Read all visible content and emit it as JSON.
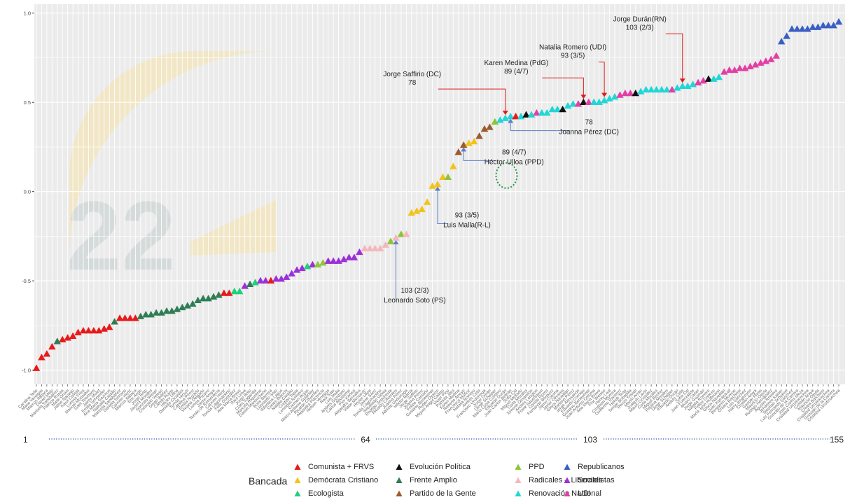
{
  "chart_data": {
    "type": "scatter",
    "title": "",
    "xlabel": "",
    "ylabel": "",
    "ylim": [
      -1.08,
      1.05
    ],
    "y_ticks": [
      -1.0,
      -0.5,
      0.0,
      0.5,
      1.0
    ],
    "y_tick_labels": [
      "-1.0",
      "-0.5",
      "0.0",
      "0.5",
      "1.0"
    ],
    "grid": true,
    "marker": "triangle",
    "legend_position": "bottom",
    "legend_title": "Bancada",
    "parties": [
      {
        "name": "Comunista + FRVS",
        "color": "#e8191a"
      },
      {
        "name": "Demócrata Cristiano",
        "color": "#f2c41a"
      },
      {
        "name": "Ecologista",
        "color": "#1fd17a"
      },
      {
        "name": "Evolución Política",
        "color": "#111111"
      },
      {
        "name": "Frente Amplio",
        "color": "#2e7d55"
      },
      {
        "name": "Partido de la Gente",
        "color": "#9c5a2e"
      },
      {
        "name": "PPD",
        "color": "#8fc43a"
      },
      {
        "name": "Radicales – Liberales",
        "color": "#f4b8bc"
      },
      {
        "name": "Renovación Nacional",
        "color": "#22d6d6"
      },
      {
        "name": "Republicanos",
        "color": "#3a5fc4"
      },
      {
        "name": "Socialistas",
        "color": "#9b30d9"
      },
      {
        "name": "UDI",
        "color": "#e23fa5"
      }
    ],
    "points": [
      [
        1,
        -0.99,
        0
      ],
      [
        2,
        -0.93,
        0
      ],
      [
        3,
        -0.91,
        0
      ],
      [
        4,
        -0.87,
        0
      ],
      [
        5,
        -0.84,
        4
      ],
      [
        6,
        -0.83,
        0
      ],
      [
        7,
        -0.82,
        0
      ],
      [
        8,
        -0.81,
        0
      ],
      [
        9,
        -0.79,
        0
      ],
      [
        10,
        -0.78,
        0
      ],
      [
        11,
        -0.78,
        0
      ],
      [
        12,
        -0.78,
        0
      ],
      [
        13,
        -0.78,
        0
      ],
      [
        14,
        -0.77,
        0
      ],
      [
        15,
        -0.76,
        0
      ],
      [
        16,
        -0.73,
        4
      ],
      [
        17,
        -0.71,
        0
      ],
      [
        18,
        -0.71,
        0
      ],
      [
        19,
        -0.71,
        0
      ],
      [
        20,
        -0.71,
        0
      ],
      [
        21,
        -0.7,
        4
      ],
      [
        22,
        -0.69,
        4
      ],
      [
        23,
        -0.69,
        4
      ],
      [
        24,
        -0.68,
        4
      ],
      [
        25,
        -0.68,
        4
      ],
      [
        26,
        -0.67,
        4
      ],
      [
        27,
        -0.67,
        4
      ],
      [
        28,
        -0.66,
        4
      ],
      [
        29,
        -0.65,
        4
      ],
      [
        30,
        -0.64,
        4
      ],
      [
        31,
        -0.63,
        4
      ],
      [
        32,
        -0.61,
        4
      ],
      [
        33,
        -0.6,
        4
      ],
      [
        34,
        -0.6,
        4
      ],
      [
        35,
        -0.59,
        4
      ],
      [
        36,
        -0.58,
        4
      ],
      [
        37,
        -0.57,
        0
      ],
      [
        38,
        -0.57,
        0
      ],
      [
        39,
        -0.56,
        2
      ],
      [
        40,
        -0.56,
        2
      ],
      [
        41,
        -0.53,
        10
      ],
      [
        42,
        -0.52,
        4
      ],
      [
        43,
        -0.51,
        2
      ],
      [
        44,
        -0.5,
        10
      ],
      [
        45,
        -0.5,
        10
      ],
      [
        46,
        -0.5,
        0
      ],
      [
        47,
        -0.49,
        10
      ],
      [
        48,
        -0.49,
        10
      ],
      [
        49,
        -0.48,
        10
      ],
      [
        50,
        -0.46,
        10
      ],
      [
        51,
        -0.44,
        10
      ],
      [
        52,
        -0.43,
        10
      ],
      [
        53,
        -0.42,
        2
      ],
      [
        54,
        -0.41,
        10
      ],
      [
        55,
        -0.41,
        6
      ],
      [
        56,
        -0.4,
        6
      ],
      [
        57,
        -0.39,
        10
      ],
      [
        58,
        -0.39,
        10
      ],
      [
        59,
        -0.39,
        10
      ],
      [
        60,
        -0.38,
        10
      ],
      [
        61,
        -0.37,
        10
      ],
      [
        62,
        -0.37,
        10
      ],
      [
        63,
        -0.34,
        10
      ],
      [
        64,
        -0.32,
        7
      ],
      [
        65,
        -0.32,
        7
      ],
      [
        66,
        -0.32,
        7
      ],
      [
        67,
        -0.32,
        7
      ],
      [
        68,
        -0.3,
        7
      ],
      [
        69,
        -0.28,
        6
      ],
      [
        70,
        -0.26,
        7
      ],
      [
        71,
        -0.24,
        6
      ],
      [
        72,
        -0.24,
        7
      ],
      [
        73,
        -0.12,
        1
      ],
      [
        74,
        -0.11,
        1
      ],
      [
        75,
        -0.1,
        1
      ],
      [
        76,
        -0.06,
        1
      ],
      [
        77,
        0.03,
        1
      ],
      [
        78,
        0.04,
        1
      ],
      [
        79,
        0.08,
        1
      ],
      [
        80,
        0.08,
        6
      ],
      [
        81,
        0.14,
        1
      ],
      [
        82,
        0.22,
        5
      ],
      [
        83,
        0.26,
        5
      ],
      [
        84,
        0.27,
        1
      ],
      [
        85,
        0.28,
        1
      ],
      [
        86,
        0.31,
        5
      ],
      [
        87,
        0.35,
        5
      ],
      [
        88,
        0.36,
        5
      ],
      [
        89,
        0.39,
        6
      ],
      [
        90,
        0.4,
        8
      ],
      [
        91,
        0.41,
        8
      ],
      [
        92,
        0.42,
        8
      ],
      [
        93,
        0.42,
        0
      ],
      [
        94,
        0.42,
        8
      ],
      [
        95,
        0.43,
        3
      ],
      [
        96,
        0.43,
        8
      ],
      [
        97,
        0.44,
        11
      ],
      [
        98,
        0.44,
        8
      ],
      [
        99,
        0.44,
        8
      ],
      [
        100,
        0.46,
        8
      ],
      [
        101,
        0.46,
        8
      ],
      [
        102,
        0.46,
        3
      ],
      [
        103,
        0.48,
        8
      ],
      [
        104,
        0.49,
        8
      ],
      [
        105,
        0.49,
        11
      ],
      [
        106,
        0.5,
        3
      ],
      [
        107,
        0.5,
        11
      ],
      [
        108,
        0.5,
        8
      ],
      [
        109,
        0.5,
        8
      ],
      [
        110,
        0.51,
        8
      ],
      [
        111,
        0.52,
        8
      ],
      [
        112,
        0.53,
        8
      ],
      [
        113,
        0.54,
        11
      ],
      [
        114,
        0.55,
        11
      ],
      [
        115,
        0.55,
        11
      ],
      [
        116,
        0.55,
        3
      ],
      [
        117,
        0.56,
        8
      ],
      [
        118,
        0.57,
        8
      ],
      [
        119,
        0.57,
        8
      ],
      [
        120,
        0.57,
        8
      ],
      [
        121,
        0.57,
        8
      ],
      [
        122,
        0.57,
        8
      ],
      [
        123,
        0.57,
        11
      ],
      [
        124,
        0.58,
        8
      ],
      [
        125,
        0.59,
        8
      ],
      [
        126,
        0.59,
        8
      ],
      [
        127,
        0.6,
        8
      ],
      [
        128,
        0.61,
        11
      ],
      [
        129,
        0.62,
        11
      ],
      [
        130,
        0.63,
        3
      ],
      [
        131,
        0.63,
        8
      ],
      [
        132,
        0.64,
        8
      ],
      [
        133,
        0.67,
        11
      ],
      [
        134,
        0.68,
        11
      ],
      [
        135,
        0.68,
        11
      ],
      [
        136,
        0.69,
        11
      ],
      [
        137,
        0.69,
        11
      ],
      [
        138,
        0.7,
        11
      ],
      [
        139,
        0.71,
        11
      ],
      [
        140,
        0.72,
        11
      ],
      [
        141,
        0.73,
        11
      ],
      [
        142,
        0.74,
        11
      ],
      [
        143,
        0.76,
        11
      ],
      [
        144,
        0.84,
        9
      ],
      [
        145,
        0.87,
        9
      ],
      [
        146,
        0.91,
        9
      ],
      [
        147,
        0.91,
        9
      ],
      [
        148,
        0.91,
        9
      ],
      [
        149,
        0.91,
        9
      ],
      [
        150,
        0.92,
        9
      ],
      [
        151,
        0.92,
        9
      ],
      [
        152,
        0.93,
        9
      ],
      [
        153,
        0.93,
        9
      ],
      [
        154,
        0.93,
        9
      ],
      [
        155,
        0.95,
        9
      ]
    ],
    "legislators": [
      "Carolina Tello",
      "Mario Venegas",
      "Marcos Ilabaca",
      "Daniel Melo",
      "Marisela Santibáñez",
      "Patricio Rosas",
      "Maite Orsini",
      "Jaime Naranjo",
      "Karol Cariola",
      "Lorena Fries",
      "Manuel Monsalve",
      "Gael Yeomans",
      "Jaime Mulet",
      "Emilia Schneider",
      "Ana María Gazmuri",
      "Nathalie Castillo",
      "Marisela Santibáñez",
      "Daniela Serrano",
      "Carmen Hertz",
      "Marcos Ilabaca",
      "Eric Aedo",
      "Jorge Brito",
      "Javiera Morales",
      "Gonzalo Winter",
      "Consuelo Veloso",
      "Diego Ibáñez",
      "Camila Rojas",
      "Héctor Ulloa",
      "Daniella Cicardini",
      "Tomás Hirsch",
      "Catalina Pérez",
      "Emilia Nuyado",
      "Viviana Delgado",
      "Lorena Pizarro",
      "Jaime Araya",
      "Tomás de Rementería",
      "Carmen Hertz",
      "Tomás Lagomarsino",
      "Félix González",
      "Ana María Bravo",
      "Raúl Leiva",
      "Jorge Brito",
      "Clara Sagardia",
      "Marcela Riquelme",
      "Daniel Manouchehri",
      "Boris Barrera",
      "Leonardo Soto",
      "Valentina Lagos",
      "Carlos Bianchi",
      "Natalia Castillo",
      "Cristián Tapia",
      "Leonidas Romero",
      "Carmen Rojas",
      "Marco Antonio Sulantay",
      "Ricardo Cifuentes",
      "Alejandra Placencia",
      "Nelson Venegas",
      "Raúl Soto",
      "Luis Malla",
      "Andrés Giordano",
      "Carlos Abusleme",
      "Pier Karlezi",
      "Alejandro Bernales",
      "Vlado Mirosevic",
      "Héctor Ulloa",
      "Jaime Sáez",
      "Tomás Lagomarsino",
      "Sebastián Videla",
      "Rodrigo Sepúlveda",
      "Ricardo Cifuentes",
      "Joanna Pérez",
      "Alberto Undurraga",
      "Héctor Barría",
      "Jorge Saffirio",
      "Joanna Pérez",
      "Felipe Camaño",
      "Gustavo Benavente",
      "Rubén Oyarzo",
      "Miguel Ángel Calisto",
      "Víctor Pino",
      "Pamela Jiles",
      "Karen Medina",
      "Roberto Arroyo",
      "Francesca Muñoz",
      "Natalia Romero",
      "Andrés Celis",
      "Francisco Undurraga",
      "Jorge Durán",
      "Diego Schalper",
      "María Luisa Cordero",
      "Eduardo Durán",
      "Juan Carlos Beltrán",
      "Sofía Cid",
      "Miguel Mellado",
      "Carla Morales",
      "Ximena Ossandón",
      "Andrés Longton",
      "Frank Sauerbaum",
      "Camila Flores",
      "Fernando Bórquez",
      "Jaime Coloma",
      "Javier Olivares",
      "Gloria Naveillán",
      "Marlene Pérez",
      "Jorge Alessandri",
      "Eduardo Cornejo",
      "Gustavo Benavente",
      "Juan Antonio Coloma",
      "Ana María Bravo",
      "Flor Weisse",
      "Henry Leal",
      "Cristhian Moreira",
      "Guillermo Ramírez",
      "Hotuiti Teao",
      "Sergio Bobadilla",
      "Renzo Trisotti",
      "Martín Arrau",
      "Joaquín Lavín",
      "Mauro González",
      "Carla Morales",
      "Miguel Becker",
      "Paulina Morales",
      "Diego Schalper",
      "Eduardo Durán",
      "Andrés Celis",
      "Sofía Cid",
      "Juan Fuenzalida",
      "Álvaro Carter",
      "Jorge Guzmán",
      "Natalia Romero",
      "Felipe Donoso",
      "María José Hoffmann",
      "Gloria Naveillán",
      "Juan Irarrázaval",
      "Benjamín Moreno",
      "Chiara Barchiesi",
      "Luis Sánchez",
      "Harry Jürgensen",
      "Cristián Araya",
      "Gaspar Rivas",
      "Mauricio Ojeda",
      "Rodrigo Hernández",
      "Agustín Romero",
      "Johannes Kaiser",
      "Stephan Schubert",
      "Luis Fernando Sánchez",
      "Gonzalo de la Carrera",
      "José Carlos Meza",
      "Cristóbal Urruticoechea",
      "Cristián Araya",
      "Mauricio Ojeda",
      "Chiara Barchiesi",
      "Cristóbal Urruticoechea",
      "Gonzalo de la Carrera",
      "Cristóbal Urruticoechea"
    ],
    "annotations": [
      {
        "index": 125,
        "text_lines": [
          "Jorge Durán(RN)",
          "103 (2/3)"
        ],
        "color": "red",
        "side": "above"
      },
      {
        "index": 110,
        "text_lines": [
          "Natalia Romero (UDI)",
          "93 (3/5)"
        ],
        "color": "red",
        "side": "above"
      },
      {
        "index": 106,
        "text_lines": [
          "Karen Medina (PdG)",
          "89 (4/7)"
        ],
        "color": "red",
        "side": "above"
      },
      {
        "index": 91,
        "text_lines": [
          "Jorge Saffirio (DC)",
          "78"
        ],
        "color": "red",
        "side": "above"
      },
      {
        "index": 92,
        "text_lines": [
          "78",
          "Joanna Pérez (DC)"
        ],
        "color": "blue",
        "side": "below"
      },
      {
        "index": 83,
        "text_lines": [
          "89 (4/7)",
          "Héctor Ulloa (PPD)"
        ],
        "color": "blue",
        "side": "below"
      },
      {
        "index": 78,
        "text_lines": [
          "93 (3/5)",
          "Luis Malla(R-L)"
        ],
        "color": "blue",
        "side": "below"
      },
      {
        "index": 70,
        "text_lines": [
          "103 (2/3)",
          "Leonardo Soto (PS)"
        ],
        "color": "blue",
        "side": "below"
      }
    ],
    "rank_markers": [
      "1",
      "64",
      "103",
      "155"
    ]
  }
}
